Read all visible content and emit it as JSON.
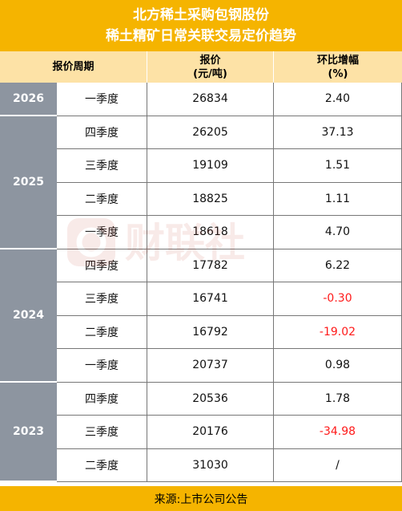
{
  "title_line1": "北方稀土采购包钢股份",
  "title_line2": "稀土精矿日常关联交易定价趋势",
  "headers": {
    "period": "报价周期",
    "price": "报价",
    "price_unit": "(元/吨)",
    "change": "环比增幅",
    "change_unit": "(%)"
  },
  "years": [
    {
      "year": "2026",
      "rows": [
        {
          "quarter": "一季度",
          "price": "26834",
          "change": "2.40",
          "negative": false
        }
      ]
    },
    {
      "year": "2025",
      "rows": [
        {
          "quarter": "四季度",
          "price": "26205",
          "change": "37.13",
          "negative": false
        },
        {
          "quarter": "三季度",
          "price": "19109",
          "change": "1.51",
          "negative": false
        },
        {
          "quarter": "二季度",
          "price": "18825",
          "change": "1.11",
          "negative": false
        },
        {
          "quarter": "一季度",
          "price": "18618",
          "change": "4.70",
          "negative": false
        }
      ]
    },
    {
      "year": "2024",
      "rows": [
        {
          "quarter": "四季度",
          "price": "17782",
          "change": "6.22",
          "negative": false
        },
        {
          "quarter": "三季度",
          "price": "16741",
          "change": "-0.30",
          "negative": true
        },
        {
          "quarter": "二季度",
          "price": "16792",
          "change": "-19.02",
          "negative": true
        },
        {
          "quarter": "一季度",
          "price": "20737",
          "change": "0.98",
          "negative": false
        }
      ]
    },
    {
      "year": "2023",
      "rows": [
        {
          "quarter": "四季度",
          "price": "20536",
          "change": "1.78",
          "negative": false
        },
        {
          "quarter": "三季度",
          "price": "20176",
          "change": "-34.98",
          "negative": true
        },
        {
          "quarter": "二季度",
          "price": "31030",
          "change": "/",
          "negative": false
        }
      ]
    }
  ],
  "footer": "来源:上市公司公告",
  "watermark_text": "财联社",
  "colors": {
    "title_bg": "#f5b400",
    "header_bg": "#fde2a6",
    "year_bg": "#8d95a0",
    "negative": "#ff1a1a"
  }
}
